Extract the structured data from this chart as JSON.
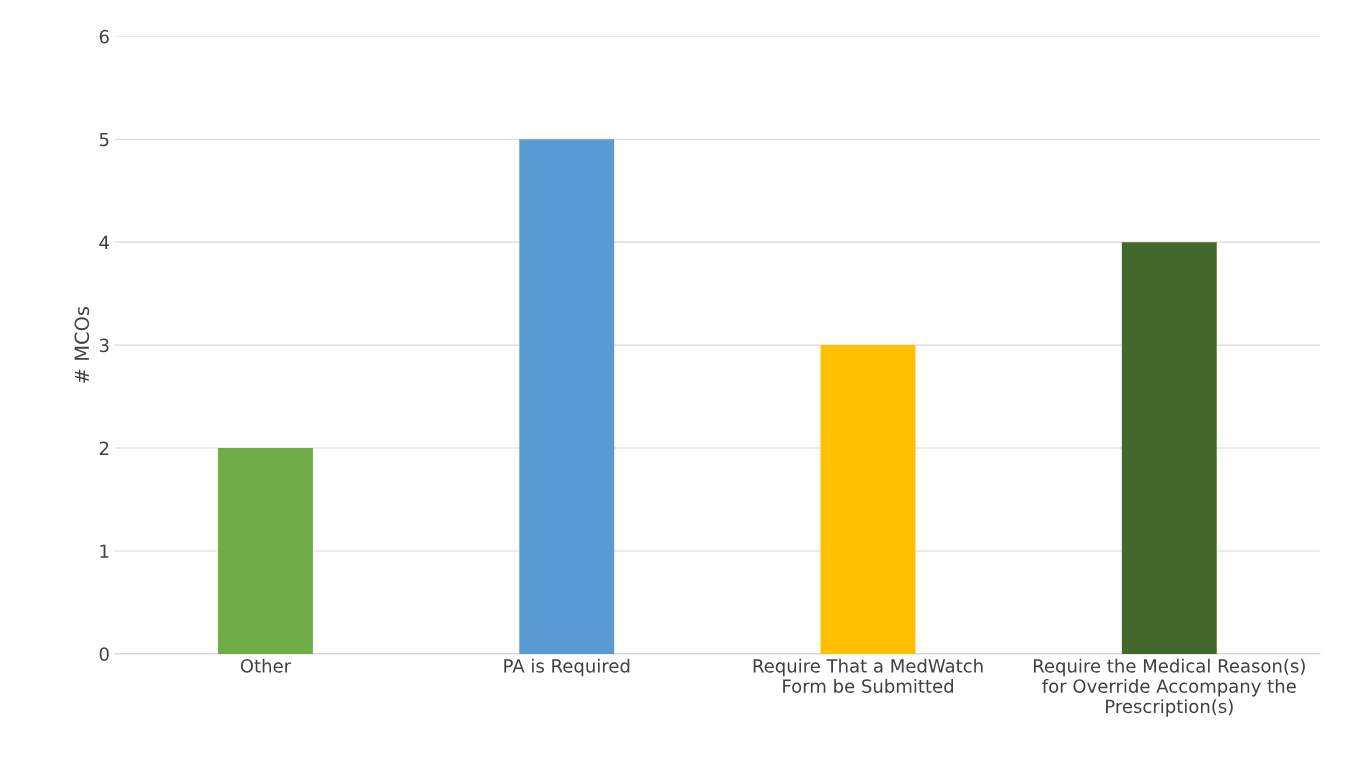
{
  "chart_data": {
    "type": "bar",
    "ylabel": "# MCOs",
    "categories": [
      "Other",
      "PA is Required",
      "Require That a MedWatch\nForm be Submitted",
      "Require the Medical Reason(s)\nfor Override Accompany the\nPrescription(s)"
    ],
    "values": [
      2,
      5,
      3,
      4
    ],
    "colors": [
      "#70ad47",
      "#5b9bd5",
      "#ffc000",
      "#43682b"
    ],
    "ylim": [
      0,
      6
    ],
    "yticks": [
      0,
      1,
      2,
      3,
      4,
      5,
      6
    ],
    "grid": "y",
    "legend": false
  }
}
